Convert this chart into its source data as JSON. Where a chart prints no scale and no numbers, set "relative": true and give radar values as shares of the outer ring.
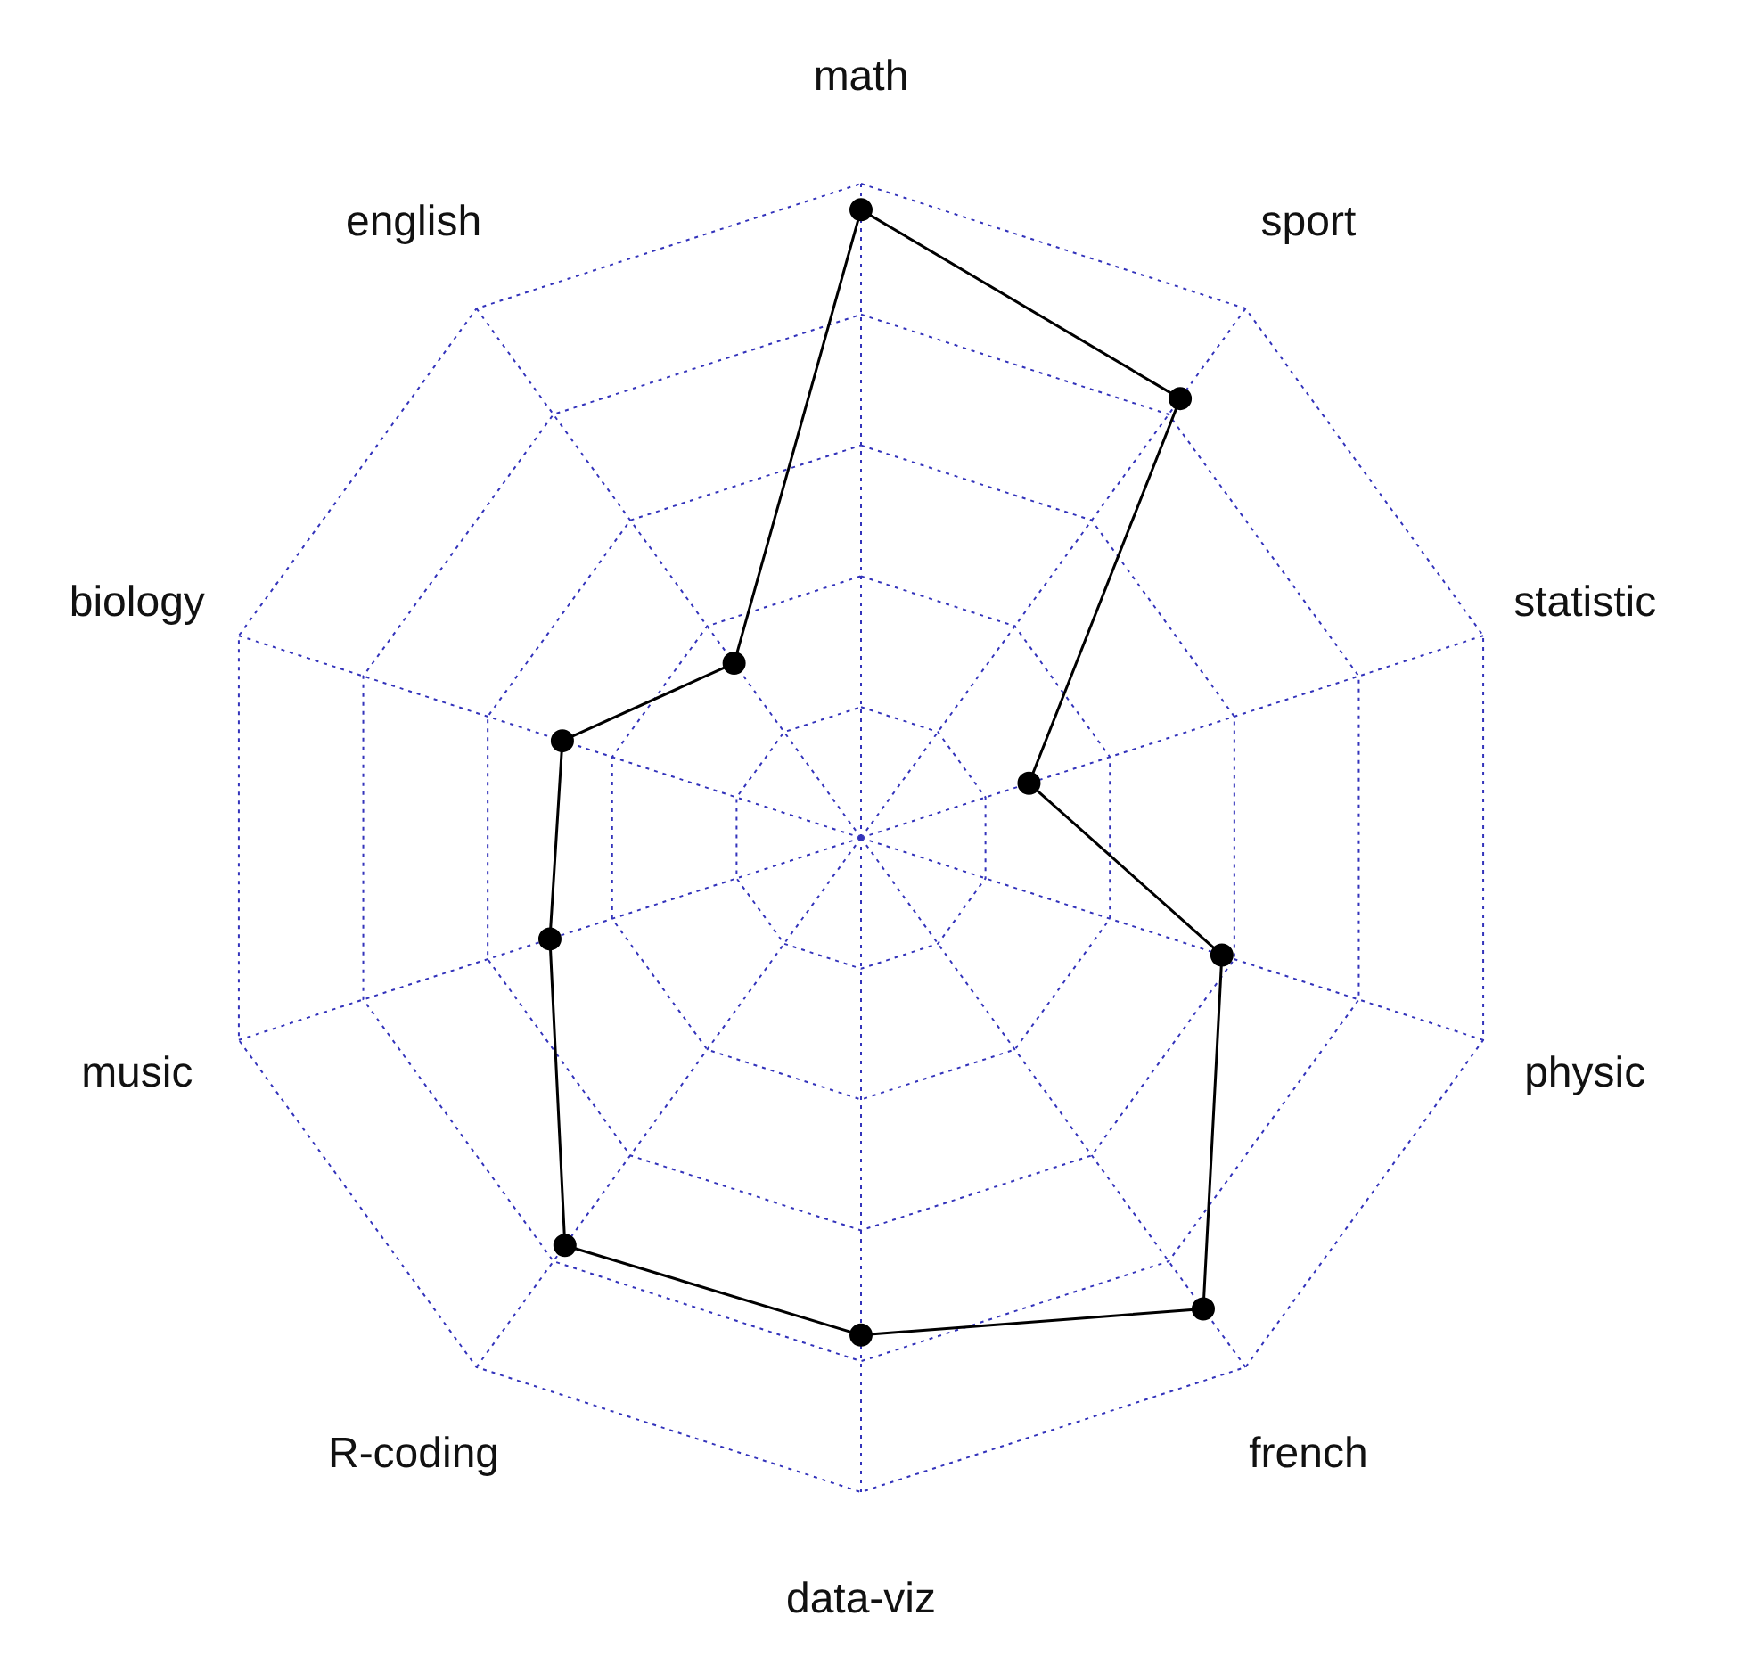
{
  "chart_data": {
    "type": "radar",
    "relative": true,
    "categories": [
      "math",
      "sport",
      "statistic",
      "physic",
      "french",
      "data-viz",
      "R-coding",
      "music",
      "biology",
      "english"
    ],
    "series": [
      {
        "color": "#000000",
        "values": [
          0.96,
          0.83,
          0.27,
          0.58,
          0.89,
          0.76,
          0.77,
          0.5,
          0.48,
          0.33
        ]
      }
    ],
    "grid": true,
    "marker": "circle",
    "line_style": "solid"
  }
}
